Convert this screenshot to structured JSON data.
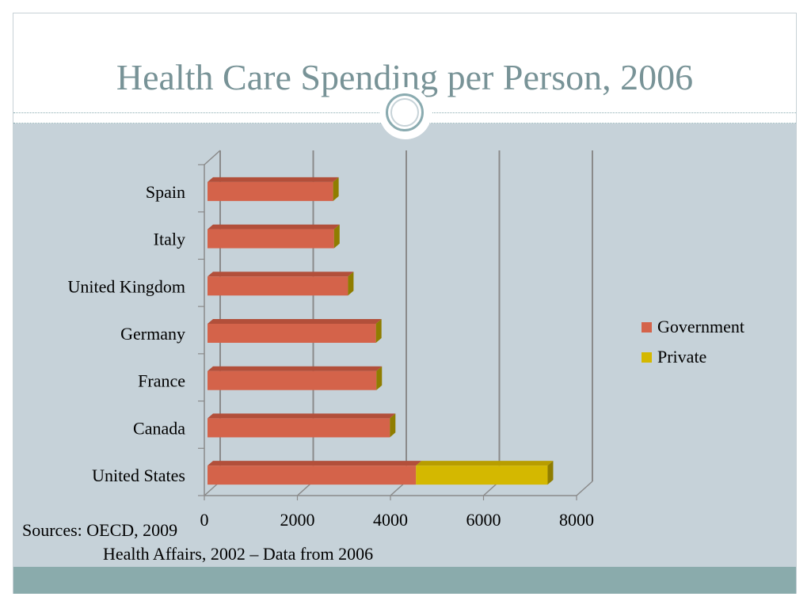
{
  "slide": {
    "title": "Health Care Spending per Person, 2006"
  },
  "sources": {
    "line1": "Sources: OECD, 2009",
    "line2": "Health Affairs, 2002 – Data from 2006"
  },
  "colors": {
    "government": "#d4634a",
    "government_top": "#b24f3a",
    "private": "#d4b800",
    "private_top": "#b89d00",
    "accent": "#789397",
    "background": "#c6d2d9"
  },
  "chart_data": {
    "type": "bar",
    "orientation": "horizontal",
    "stacked": true,
    "categories": [
      "Spain",
      "Italy",
      "United Kingdom",
      "Germany",
      "France",
      "Canada",
      "United States"
    ],
    "series": [
      {
        "name": "Government",
        "values": [
          2700,
          2720,
          3020,
          3620,
          3630,
          3920,
          4480
        ]
      },
      {
        "name": "Private",
        "values": [
          0,
          0,
          0,
          0,
          0,
          0,
          2830
        ]
      }
    ],
    "xticks": [
      "0",
      "2000",
      "4000",
      "6000",
      "8000"
    ],
    "xlim": [
      0,
      8000
    ],
    "grid": true,
    "legend": "right"
  }
}
